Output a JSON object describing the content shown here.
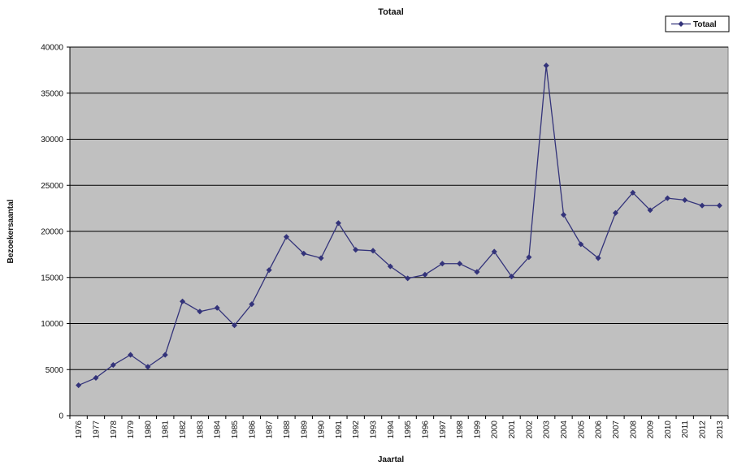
{
  "chart_data": {
    "type": "line",
    "title": "Totaal",
    "xlabel": "Jaartal",
    "ylabel": "Bezoekersaantal",
    "ylim": [
      0,
      40000
    ],
    "yticks": [
      0,
      5000,
      10000,
      15000,
      20000,
      25000,
      30000,
      35000,
      40000
    ],
    "grid": "horizontal",
    "legend_position": "top-right",
    "plot_background": "#c0c0c0",
    "line_color": "#33337a",
    "categories": [
      "1976",
      "1977",
      "1978",
      "1979",
      "1980",
      "1981",
      "1982",
      "1983",
      "1984",
      "1985",
      "1986",
      "1987",
      "1988",
      "1989",
      "1990",
      "1991",
      "1992",
      "1993",
      "1994",
      "1995",
      "1996",
      "1997",
      "1998",
      "1999",
      "2000",
      "2001",
      "2002",
      "2003",
      "2004",
      "2005",
      "2006",
      "2007",
      "2008",
      "2009",
      "2010",
      "2011",
      "2012",
      "2013"
    ],
    "series": [
      {
        "name": "Totaal",
        "values": [
          3300,
          4100,
          5500,
          6600,
          5300,
          6600,
          12400,
          11300,
          11700,
          9800,
          12100,
          15800,
          19400,
          17600,
          17100,
          20900,
          18000,
          17900,
          16200,
          14900,
          15300,
          16500,
          16500,
          15600,
          17800,
          15100,
          17200,
          38000,
          21800,
          18600,
          17100,
          22000,
          24200,
          22300,
          23600,
          23400,
          22800,
          22800
        ]
      }
    ]
  }
}
